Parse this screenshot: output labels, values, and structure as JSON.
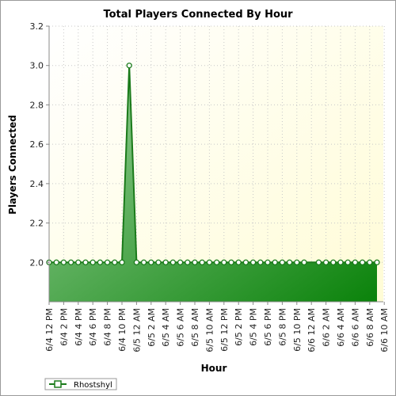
{
  "chart_data": {
    "type": "area",
    "title": "Total Players Connected By Hour",
    "xlabel": "Hour",
    "ylabel": "Players Connected",
    "ylim": [
      1.8,
      3.2
    ],
    "y_ticks": [
      "2.0",
      "2.2",
      "2.4",
      "2.6",
      "2.8",
      "3.0",
      "3.2"
    ],
    "x_tick_labels": [
      "6/4 12 PM",
      "6/4 2 PM",
      "6/4 4 PM",
      "6/4 6 PM",
      "6/4 8 PM",
      "6/4 10 PM",
      "6/5 12 AM",
      "6/5 2 AM",
      "6/5 4 AM",
      "6/5 6 AM",
      "6/5 8 AM",
      "6/5 10 AM",
      "6/5 12 PM",
      "6/5 2 PM",
      "6/5 4 PM",
      "6/5 6 PM",
      "6/5 8 PM",
      "6/5 10 PM",
      "6/6 12 AM",
      "6/6 2 AM",
      "6/6 4 AM",
      "6/6 6 AM",
      "6/6 8 AM",
      "6/6 10 AM"
    ],
    "grid": true,
    "legend_position": "bottom-left",
    "colors": {
      "plot_background_top": "#fffde0",
      "line": "#1a7a1a",
      "fill_light": "#9dd29d",
      "fill_dark": "#0a820a",
      "marker_fill": "#ffffff"
    },
    "series": [
      {
        "name": "Rhostshyl",
        "x_hours": [
          0,
          1,
          2,
          3,
          4,
          5,
          6,
          7,
          8,
          9,
          10,
          11,
          12,
          13,
          14,
          15,
          16,
          17,
          18,
          19,
          20,
          21,
          22,
          23,
          24,
          25,
          26,
          27,
          28,
          29,
          30,
          31,
          32,
          33,
          34,
          35,
          36,
          37,
          38,
          39,
          40,
          41,
          42,
          43,
          44,
          45
        ],
        "values": [
          2,
          2,
          2,
          2,
          2,
          2,
          2,
          2,
          2,
          2,
          2,
          3,
          2,
          2,
          2,
          2,
          2,
          2,
          2,
          2,
          2,
          2,
          2,
          2,
          2,
          2,
          2,
          2,
          2,
          2,
          2,
          2,
          2,
          2,
          2,
          2,
          2,
          2,
          2,
          2,
          2,
          2,
          2,
          2,
          2,
          2
        ],
        "markers": [
          true,
          true,
          true,
          true,
          true,
          true,
          true,
          true,
          true,
          true,
          true,
          true,
          true,
          true,
          true,
          true,
          true,
          true,
          true,
          true,
          true,
          true,
          true,
          true,
          true,
          true,
          true,
          true,
          true,
          true,
          true,
          true,
          true,
          true,
          true,
          true,
          false,
          true,
          true,
          true,
          true,
          true,
          true,
          true,
          true,
          true
        ]
      }
    ]
  }
}
